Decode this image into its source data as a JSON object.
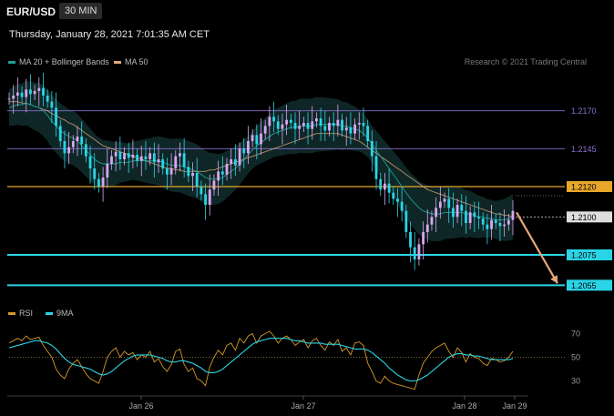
{
  "header": {
    "symbol": "EUR/USD",
    "timeframe": "30 MIN",
    "datetime": "Thursday, January 28, 2021 7:01:35 AM CET"
  },
  "legend": {
    "main": [
      {
        "label": "MA 20 + Bollinger Bands",
        "color": "#1f9e96"
      },
      {
        "label": "MA 50",
        "color": "#e6a77a"
      }
    ],
    "rsi": [
      {
        "label": "RSI",
        "color": "#d49a2a"
      },
      {
        "label": "9MA",
        "color": "#2ad4e6"
      }
    ]
  },
  "credit": "Research © 2021 Trading Central",
  "colors": {
    "up": "#d9a6f0",
    "down": "#2ad4e6",
    "resistance": "#8a6fd1",
    "key_level": "#e6a72a",
    "support": "#2ad4e6",
    "arrow": "#e6a77a"
  },
  "chart_data": {
    "type": "candlestick",
    "ylim": [
      1.2045,
      1.2195
    ],
    "levels": [
      {
        "value": 1.217,
        "label": "1.2170",
        "kind": "resistance"
      },
      {
        "value": 1.2145,
        "label": "1.2145",
        "kind": "resistance"
      },
      {
        "value": 1.212,
        "label": "1.2120",
        "kind": "key"
      },
      {
        "value": 1.21,
        "label": "1.2100",
        "kind": "current"
      },
      {
        "value": 1.2075,
        "label": "1.2075",
        "kind": "support"
      },
      {
        "value": 1.2055,
        "label": "1.2055",
        "kind": "support"
      }
    ],
    "x_ticks": [
      "Jan 26",
      "Jan 27",
      "Jan 28",
      "Jan 29"
    ],
    "series_close": [
      1.2178,
      1.218,
      1.2182,
      1.2179,
      1.2184,
      1.2181,
      1.2183,
      1.2185,
      1.218,
      1.2176,
      1.2172,
      1.216,
      1.215,
      1.2142,
      1.2146,
      1.215,
      1.2153,
      1.2148,
      1.214,
      1.2132,
      1.2125,
      1.212,
      1.2126,
      1.2135,
      1.214,
      1.2143,
      1.2138,
      1.2142,
      1.2139,
      1.2141,
      1.2137,
      1.214,
      1.2138,
      1.2142,
      1.2136,
      1.2138,
      1.2132,
      1.2128,
      1.2132,
      1.214,
      1.2142,
      1.2133,
      1.2127,
      1.2129,
      1.212,
      1.2115,
      1.2108,
      1.2118,
      1.2124,
      1.213,
      1.2128,
      1.2135,
      1.2138,
      1.2134,
      1.2145,
      1.2142,
      1.215,
      1.2154,
      1.2148,
      1.2155,
      1.216,
      1.2166,
      1.2163,
      1.2158,
      1.2161,
      1.2164,
      1.2162,
      1.2158,
      1.216,
      1.2162,
      1.2158,
      1.2163,
      1.2165,
      1.216,
      1.2157,
      1.2162,
      1.216,
      1.2164,
      1.2157,
      1.2159,
      1.2155,
      1.2161,
      1.2162,
      1.216,
      1.215,
      1.214,
      1.2125,
      1.2118,
      1.2122,
      1.2116,
      1.2112,
      1.211,
      1.2104,
      1.209,
      1.208,
      1.2072,
      1.2082,
      1.209,
      1.2095,
      1.21,
      1.2106,
      1.211,
      1.2112,
      1.2106,
      1.21,
      1.2108,
      1.2104,
      1.2096,
      1.2103,
      1.21,
      1.2099,
      1.2095,
      1.2092,
      1.2098,
      1.2096,
      1.2094,
      1.2095,
      1.2098,
      1.2104
    ],
    "ma20": [
      1.2172,
      1.2173,
      1.2174,
      1.2174,
      1.2175,
      1.2174,
      1.2173,
      1.2172,
      1.217,
      1.2167,
      1.2163,
      1.216,
      1.2157,
      1.2155,
      1.2153,
      1.2152,
      1.215,
      1.2147,
      1.2144,
      1.2141,
      1.2138,
      1.2136,
      1.2135,
      1.2135,
      1.2135,
      1.2135,
      1.2136,
      1.2136,
      1.2136,
      1.2137,
      1.2137,
      1.2137,
      1.2137,
      1.2137,
      1.2137,
      1.2137,
      1.2136,
      1.2135,
      1.2134,
      1.2134,
      1.2134,
      1.2133,
      1.2132,
      1.2131,
      1.213,
      1.2128,
      1.2126,
      1.2125,
      1.2125,
      1.2125,
      1.2126,
      1.2128,
      1.213,
      1.2132,
      1.2135,
      1.2138,
      1.2141,
      1.2144,
      1.2147,
      1.2149,
      1.2151,
      1.2153,
      1.2155,
      1.2156,
      1.2157,
      1.2158,
      1.2159,
      1.2159,
      1.216,
      1.216,
      1.216,
      1.216,
      1.2161,
      1.2161,
      1.2161,
      1.2161,
      1.2161,
      1.2161,
      1.216,
      1.216,
      1.2159,
      1.2158,
      1.2157,
      1.2155,
      1.2152,
      1.2148,
      1.2144,
      1.214,
      1.2136,
      1.2132,
      1.2128,
      1.2124,
      1.212,
      1.2116,
      1.2112,
      1.2109,
      1.2106,
      1.2104,
      1.2103,
      1.2102,
      1.2102,
      1.2102,
      1.2103,
      1.2103,
      1.2103,
      1.2103,
      1.2103,
      1.2102,
      1.2102,
      1.2101,
      1.21,
      1.21,
      1.2099,
      1.2099,
      1.2098,
      1.2098,
      1.2098,
      1.2099,
      1.21
    ],
    "ma50": [
      1.2176,
      1.2176,
      1.2176,
      1.2175,
      1.2175,
      1.2174,
      1.2173,
      1.2172,
      1.2171,
      1.217,
      1.2168,
      1.2167,
      1.2165,
      1.2164,
      1.2162,
      1.2161,
      1.2159,
      1.2157,
      1.2155,
      1.2153,
      1.2151,
      1.2149,
      1.2147,
      1.2146,
      1.2145,
      1.2144,
      1.2143,
      1.2142,
      1.2141,
      1.214,
      1.2139,
      1.2138,
      1.2137,
      1.2136,
      1.2135,
      1.2134,
      1.2133,
      1.2132,
      1.2132,
      1.2131,
      1.2131,
      1.213,
      1.213,
      1.213,
      1.213,
      1.213,
      1.213,
      1.2131,
      1.2131,
      1.2132,
      1.2133,
      1.2134,
      1.2135,
      1.2136,
      1.2137,
      1.2138,
      1.2139,
      1.214,
      1.2141,
      1.2142,
      1.2143,
      1.2144,
      1.2145,
      1.2146,
      1.2147,
      1.2148,
      1.2149,
      1.215,
      1.2151,
      1.2152,
      1.2153,
      1.2154,
      1.2155,
      1.2155,
      1.2155,
      1.2155,
      1.2155,
      1.2155,
      1.2154,
      1.2153,
      1.2152,
      1.2151,
      1.215,
      1.2148,
      1.2146,
      1.2144,
      1.2142,
      1.214,
      1.2138,
      1.2136,
      1.2134,
      1.2132,
      1.213,
      1.2128,
      1.2126,
      1.2124,
      1.2122,
      1.212,
      1.2118,
      1.2117,
      1.2116,
      1.2115,
      1.2114,
      1.2113,
      1.2112,
      1.2111,
      1.211,
      1.2109,
      1.2108,
      1.2107,
      1.2106,
      1.2105,
      1.2104,
      1.2103,
      1.2102,
      1.2102,
      1.2101,
      1.2101,
      1.21
    ],
    "forecast": {
      "from": 1.2103,
      "to": 1.2055
    },
    "rsi": {
      "ylim": [
        25,
        75
      ],
      "ticks": [
        70,
        50,
        30
      ],
      "reference": 50,
      "rsi": [
        62,
        64,
        66,
        64,
        68,
        65,
        66,
        67,
        60,
        55,
        50,
        40,
        35,
        32,
        40,
        45,
        48,
        42,
        36,
        32,
        30,
        28,
        38,
        50,
        55,
        58,
        50,
        55,
        52,
        54,
        48,
        52,
        50,
        55,
        46,
        49,
        42,
        38,
        44,
        55,
        57,
        44,
        38,
        41,
        32,
        30,
        26,
        42,
        50,
        56,
        52,
        60,
        62,
        56,
        66,
        62,
        68,
        70,
        62,
        68,
        70,
        72,
        68,
        62,
        66,
        68,
        65,
        60,
        63,
        65,
        58,
        64,
        66,
        60,
        56,
        63,
        60,
        65,
        55,
        58,
        52,
        62,
        63,
        60,
        45,
        38,
        30,
        28,
        34,
        30,
        28,
        27,
        26,
        25,
        24,
        23,
        35,
        45,
        50,
        55,
        58,
        60,
        62,
        55,
        50,
        58,
        54,
        46,
        53,
        50,
        49,
        45,
        43,
        49,
        48,
        46,
        47,
        50,
        55
      ],
      "ma9": [
        58,
        59,
        60,
        61,
        62,
        63,
        64,
        64,
        63,
        62,
        60,
        57,
        53,
        49,
        46,
        44,
        43,
        42,
        41,
        40,
        38,
        36,
        35,
        36,
        38,
        41,
        44,
        47,
        49,
        51,
        52,
        52,
        52,
        52,
        51,
        50,
        49,
        47,
        46,
        46,
        47,
        47,
        46,
        45,
        43,
        41,
        38,
        37,
        37,
        38,
        40,
        43,
        46,
        49,
        52,
        55,
        58,
        61,
        63,
        64,
        65,
        66,
        66,
        66,
        66,
        66,
        65,
        64,
        64,
        63,
        62,
        62,
        62,
        62,
        61,
        61,
        61,
        61,
        60,
        59,
        58,
        57,
        57,
        57,
        56,
        54,
        51,
        48,
        45,
        41,
        38,
        35,
        33,
        31,
        30,
        30,
        31,
        33,
        35,
        38,
        41,
        44,
        47,
        50,
        52,
        53,
        53,
        52,
        52,
        51,
        51,
        50,
        49,
        48,
        48,
        48,
        48,
        48,
        49
      ]
    }
  }
}
